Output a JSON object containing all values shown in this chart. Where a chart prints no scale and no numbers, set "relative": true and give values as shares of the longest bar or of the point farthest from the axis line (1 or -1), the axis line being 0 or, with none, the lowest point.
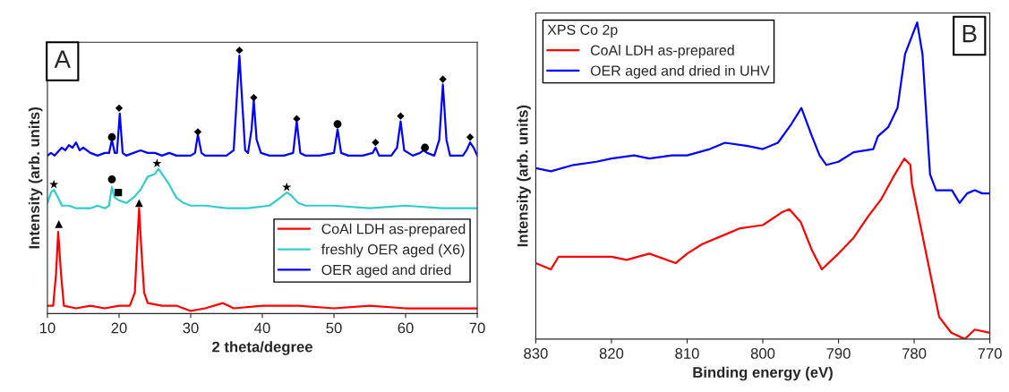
{
  "chart_data": [
    {
      "type": "line",
      "relative": true,
      "xlabel": "2 theta/degree",
      "ylabel": "Intensity (arb. units)",
      "xlim": [
        10,
        70
      ],
      "xticks": [
        10,
        20,
        30,
        40,
        50,
        60,
        70
      ],
      "legend": "bottom right",
      "grid": false,
      "annotations": [
        "A"
      ],
      "series": [
        {
          "name": "CoAl LDH as-prepared",
          "color": "#ff0000",
          "x": [
            10,
            10.8,
            11.2,
            11.5,
            11.9,
            12.3,
            14,
            16,
            18,
            20,
            21.5,
            22.2,
            22.6,
            22.8,
            23.1,
            23.5,
            24,
            26,
            28,
            30,
            32,
            34.5,
            36,
            40,
            45,
            50,
            55,
            60,
            65,
            70
          ],
          "values": [
            0.03,
            0.03,
            0.15,
            0.31,
            0.15,
            0.03,
            0.02,
            0.03,
            0.02,
            0.03,
            0.03,
            0.08,
            0.3,
            0.4,
            0.25,
            0.08,
            0.04,
            0.03,
            0.03,
            0.01,
            0.02,
            0.04,
            0.02,
            0.03,
            0.03,
            0.02,
            0.03,
            0.02,
            0.02,
            0.02
          ]
        },
        {
          "name": "freshly OER aged (X6)",
          "color": "#33cccc",
          "x": [
            10,
            10.5,
            10.9,
            11.5,
            12,
            13,
            14,
            15,
            16,
            17,
            18,
            18.6,
            19,
            19.4,
            20,
            21,
            22,
            23,
            24,
            25,
            25.5,
            26,
            27,
            28,
            29,
            30,
            32,
            35,
            38,
            41,
            42.5,
            43.4,
            44,
            45,
            46,
            50,
            55,
            60,
            65,
            70
          ],
          "values": [
            0.42,
            0.46,
            0.47,
            0.44,
            0.41,
            0.41,
            0.4,
            0.4,
            0.4,
            0.41,
            0.4,
            0.41,
            0.48,
            0.44,
            0.43,
            0.42,
            0.44,
            0.47,
            0.52,
            0.53,
            0.55,
            0.53,
            0.49,
            0.44,
            0.42,
            0.41,
            0.41,
            0.4,
            0.4,
            0.41,
            0.44,
            0.46,
            0.45,
            0.42,
            0.41,
            0.41,
            0.4,
            0.41,
            0.4,
            0.4
          ]
        },
        {
          "name": "OER aged and dried",
          "color": "#0000ff",
          "x": [
            10,
            10.5,
            11,
            12,
            12.5,
            13,
            13.5,
            14,
            14.5,
            15,
            16,
            17,
            18,
            18.6,
            19,
            19.4,
            19.7,
            20.1,
            20.5,
            21,
            22,
            23,
            24,
            25,
            26,
            27,
            28,
            29,
            30,
            30.6,
            31,
            31.5,
            32,
            33,
            34,
            35,
            36,
            36.5,
            36.8,
            37.2,
            37.6,
            38,
            38.5,
            38.8,
            39.2,
            39.8,
            41,
            43,
            44.3,
            44.8,
            45.3,
            46,
            48,
            50,
            50.5,
            51,
            52,
            54,
            55.4,
            55.8,
            56.3,
            58,
            58.8,
            59.3,
            59.8,
            61,
            62,
            62.5,
            63,
            64,
            64.7,
            65.2,
            65.7,
            66.2,
            68,
            68.5,
            69,
            69.5,
            70
          ],
          "values": [
            0.6,
            0.61,
            0.6,
            0.63,
            0.62,
            0.64,
            0.63,
            0.65,
            0.62,
            0.63,
            0.61,
            0.6,
            0.61,
            0.61,
            0.66,
            0.61,
            0.61,
            0.76,
            0.61,
            0.6,
            0.61,
            0.62,
            0.61,
            0.61,
            0.6,
            0.61,
            0.6,
            0.6,
            0.6,
            0.61,
            0.68,
            0.61,
            0.6,
            0.6,
            0.6,
            0.6,
            0.62,
            0.85,
            0.98,
            0.8,
            0.62,
            0.61,
            0.7,
            0.81,
            0.66,
            0.61,
            0.6,
            0.6,
            0.61,
            0.73,
            0.61,
            0.6,
            0.6,
            0.61,
            0.7,
            0.61,
            0.6,
            0.6,
            0.61,
            0.63,
            0.6,
            0.6,
            0.63,
            0.73,
            0.62,
            0.6,
            0.61,
            0.62,
            0.61,
            0.6,
            0.66,
            0.87,
            0.66,
            0.6,
            0.6,
            0.62,
            0.65,
            0.63,
            0.6
          ]
        },
        {
          "type": "scatter",
          "marker": "diamond",
          "color": "#000000",
          "x": [
            20,
            31,
            36.8,
            38.8,
            44.8,
            55.8,
            59.3,
            65.2,
            69
          ],
          "values": [
            0.78,
            0.69,
            1.0,
            0.82,
            0.74,
            0.65,
            0.75,
            0.89,
            0.67
          ]
        },
        {
          "type": "scatter",
          "marker": "circle",
          "color": "#000000",
          "x": [
            19,
            50.5,
            62.7,
            19
          ],
          "values": [
            0.67,
            0.72,
            0.63,
            0.51
          ]
        },
        {
          "type": "scatter",
          "marker": "star",
          "color": "#000000",
          "x": [
            10.9,
            25.3,
            43.4
          ],
          "values": [
            0.49,
            0.57,
            0.48
          ]
        },
        {
          "type": "scatter",
          "marker": "square",
          "color": "#000000",
          "x": [
            19.9
          ],
          "values": [
            0.46
          ]
        },
        {
          "type": "scatter",
          "marker": "triangle",
          "color": "#000000",
          "x": [
            11.6,
            22.8
          ],
          "values": [
            0.34,
            0.42
          ]
        }
      ]
    },
    {
      "type": "line",
      "relative": true,
      "xlabel": "Binding energy (eV)",
      "ylabel": "Intensity (arb. units)",
      "xlim": [
        830,
        770
      ],
      "xticks": [
        830,
        820,
        810,
        800,
        790,
        780,
        770
      ],
      "legend": "top left",
      "legend_title": "XPS Co 2p",
      "grid": false,
      "annotations": [
        "B"
      ],
      "series": [
        {
          "name": "CoAl LDH as-prepared",
          "color": "#ff0000",
          "x": [
            830,
            828,
            827,
            824,
            820,
            818,
            815,
            811.5,
            810,
            808,
            805,
            803,
            800,
            797.5,
            796.5,
            795,
            793.5,
            792.2,
            790,
            788,
            786,
            784.4,
            782.8,
            781.3,
            780.5,
            780.3,
            779.1,
            777.9,
            776.7,
            775.1,
            773.3,
            772,
            770
          ],
          "values": [
            0.24,
            0.22,
            0.26,
            0.26,
            0.26,
            0.25,
            0.27,
            0.24,
            0.27,
            0.3,
            0.33,
            0.35,
            0.36,
            0.4,
            0.41,
            0.37,
            0.28,
            0.22,
            0.27,
            0.32,
            0.39,
            0.44,
            0.51,
            0.57,
            0.55,
            0.49,
            0.35,
            0.21,
            0.07,
            0.02,
            0.0,
            0.03,
            0.02
          ]
        },
        {
          "name": "OER aged and dried in UHV",
          "color": "#0000ff",
          "x": [
            830,
            828,
            825,
            822,
            820,
            817,
            815,
            812,
            810,
            807,
            805,
            802,
            800,
            798,
            796.2,
            794.9,
            793.5,
            792.5,
            791.6,
            790,
            788,
            785.4,
            784.8,
            783.4,
            782.2,
            781.2,
            779.6,
            778.9,
            777.9,
            777.1,
            775,
            774,
            773,
            772,
            771,
            770
          ],
          "values": [
            0.54,
            0.53,
            0.55,
            0.56,
            0.57,
            0.58,
            0.57,
            0.58,
            0.58,
            0.6,
            0.62,
            0.61,
            0.6,
            0.62,
            0.68,
            0.73,
            0.64,
            0.58,
            0.55,
            0.56,
            0.59,
            0.6,
            0.64,
            0.67,
            0.73,
            0.9,
            1.0,
            0.9,
            0.52,
            0.47,
            0.47,
            0.43,
            0.46,
            0.47,
            0.46,
            0.46
          ]
        }
      ]
    }
  ]
}
